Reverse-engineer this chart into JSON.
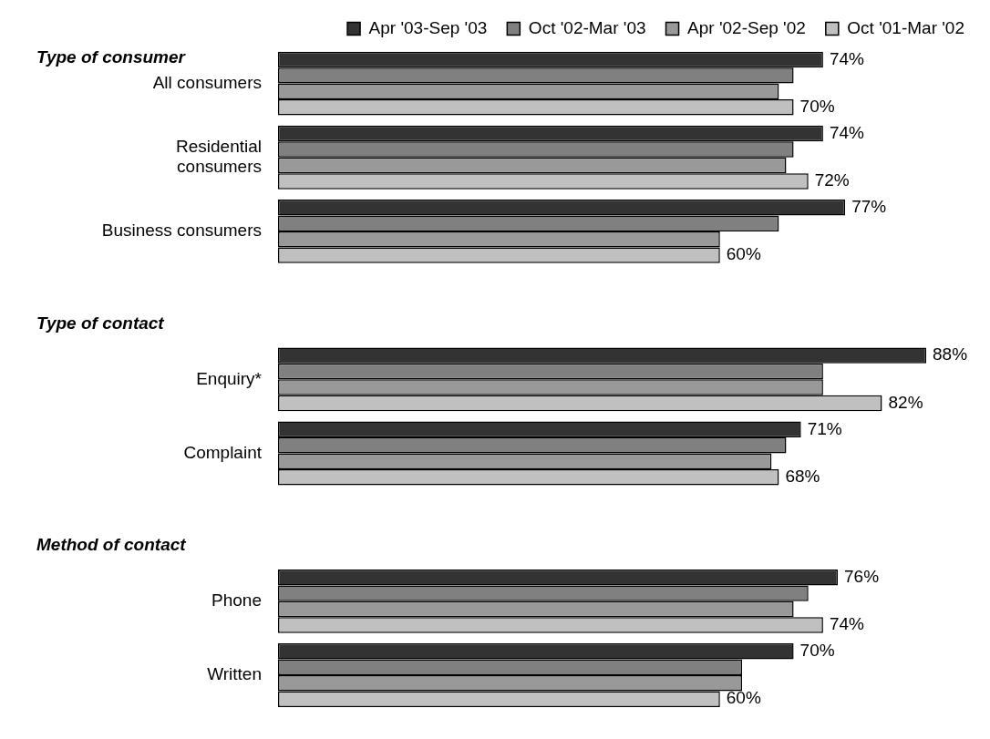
{
  "chart_data": {
    "type": "bar",
    "orientation": "horizontal",
    "legend": "top",
    "tick_labels": "y",
    "categories": [
      "All consumers",
      "Residential\nconsumers",
      "Business consumers",
      null,
      "Enquiry*",
      "Complaint",
      null,
      "Phone",
      "Written"
    ],
    "annotations": [
      "Type of consumer",
      "Type of contact",
      "Method of contact"
    ],
    "series": [
      {
        "name": "Apr '03-Sep '03",
        "color": "#333333",
        "values": [
          74,
          74,
          77,
          null,
          88,
          71,
          null,
          76,
          70
        ],
        "value_labels": [
          "74%",
          "74%",
          "77%",
          null,
          "88%",
          "71%",
          null,
          "76%",
          "70%"
        ]
      },
      {
        "name": "Oct '02-Mar '03",
        "color": "#808080",
        "values": [
          70,
          70,
          68,
          null,
          74,
          69,
          null,
          72,
          63
        ]
      },
      {
        "name": "Apr '02-Sep '02",
        "color": "#999999",
        "values": [
          68,
          69,
          60,
          null,
          74,
          67,
          null,
          70,
          63
        ]
      },
      {
        "name": "Oct '01-Mar '02",
        "color": "#c0c0c0",
        "values": [
          70,
          72,
          60,
          null,
          82,
          68,
          null,
          74,
          60
        ],
        "value_labels": [
          "70%",
          "72%",
          "60%",
          null,
          "82%",
          "68%",
          null,
          "74%",
          "60%"
        ]
      }
    ]
  }
}
